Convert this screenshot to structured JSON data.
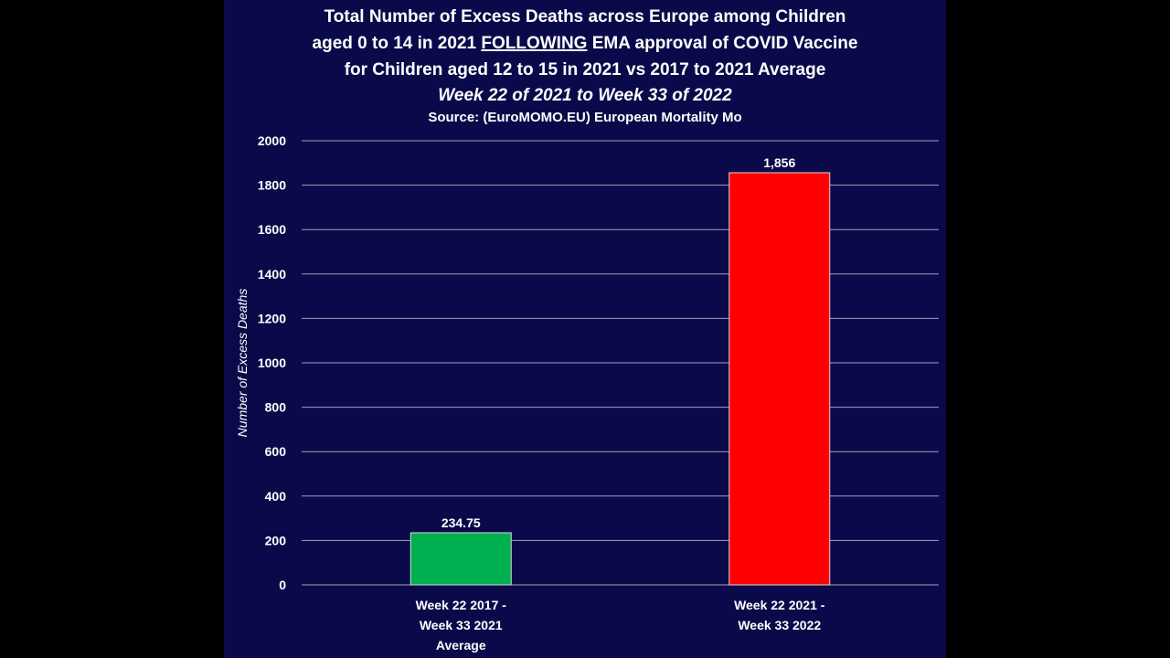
{
  "colors": {
    "page_background": "#000000",
    "panel_background": "#0a0a4a",
    "gridline": "#a0a0b8",
    "text": "#ffffff"
  },
  "chart_data": {
    "type": "bar",
    "title_lines": [
      "Total Number of Excess Deaths across Europe among Children",
      "for Children aged 12 to 15 in 2021 vs 2017 to 2021 Average"
    ],
    "title_line2": {
      "before": "aged 0 to 14 in 2021 ",
      "underlined": "FOLLOWING",
      "after": " EMA approval of COVID Vaccine"
    },
    "subtitle": "Week 22 of 2021 to Week 33 of 2022",
    "source": "Source: (EuroMOMO.EU) European Mortality Mo",
    "ylabel": "Number of Excess Deaths",
    "xlabel": "",
    "ylim": [
      0,
      2000
    ],
    "yticks": [
      "0",
      "200",
      "400",
      "600",
      "800",
      "1000",
      "1200",
      "1400",
      "1600",
      "1800",
      "2000"
    ],
    "grid": true,
    "categories": [
      [
        "Week 22 2017 -",
        "Week 33 2021",
        "Average"
      ],
      [
        "Week 22 2021 -",
        "Week 33 2022"
      ]
    ],
    "values": [
      234.75,
      1856
    ],
    "value_labels": [
      "234.75",
      "1,856"
    ],
    "bar_colors": [
      "#00b050",
      "#ff0000"
    ]
  }
}
